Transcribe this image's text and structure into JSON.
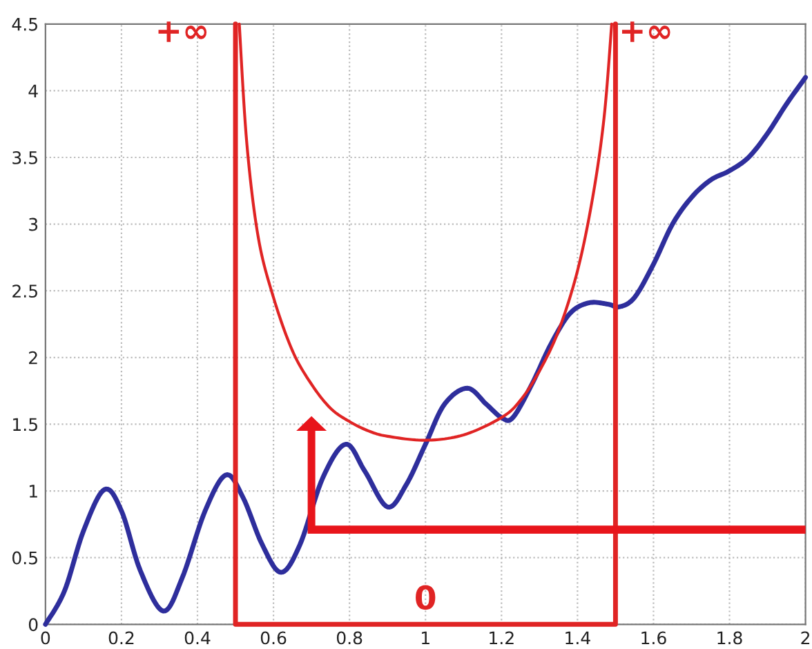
{
  "chart_data": {
    "type": "line",
    "xlim": [
      0,
      2
    ],
    "ylim": [
      0,
      4.5
    ],
    "xticks": [
      0,
      0.2,
      0.4,
      0.6,
      0.8,
      1,
      1.2,
      1.4,
      1.6,
      1.8,
      2
    ],
    "yticks": [
      0,
      0.5,
      1,
      1.5,
      2,
      2.5,
      3,
      3.5,
      4,
      4.5
    ],
    "grid": true,
    "line_style": "solid",
    "marker": "none",
    "series": [
      {
        "color": "#2e2e9c",
        "x": [
          0,
          0.05,
          0.1,
          0.155,
          0.2,
          0.25,
          0.31,
          0.36,
          0.42,
          0.475,
          0.52,
          0.57,
          0.62,
          0.67,
          0.73,
          0.79,
          0.84,
          0.9,
          0.95,
          1.0,
          1.05,
          1.11,
          1.16,
          1.2,
          1.23,
          1.28,
          1.33,
          1.38,
          1.43,
          1.48,
          1.51,
          1.55,
          1.6,
          1.65,
          1.7,
          1.75,
          1.8,
          1.85,
          1.9,
          1.95,
          2.0
        ],
        "values": [
          0,
          0.25,
          0.7,
          1.01,
          0.85,
          0.4,
          0.1,
          0.35,
          0.85,
          1.12,
          0.95,
          0.6,
          0.39,
          0.6,
          1.1,
          1.35,
          1.15,
          0.88,
          1.05,
          1.35,
          1.65,
          1.77,
          1.65,
          1.55,
          1.55,
          1.8,
          2.1,
          2.33,
          2.41,
          2.4,
          2.38,
          2.45,
          2.7,
          3.0,
          3.2,
          3.33,
          3.4,
          3.5,
          3.68,
          3.9,
          4.1
        ]
      },
      {
        "color": "#e02424",
        "x": [
          0.51,
          0.53,
          0.56,
          0.6,
          0.65,
          0.7,
          0.75,
          0.8,
          0.85,
          0.9,
          1.0,
          1.1,
          1.2,
          1.25,
          1.3,
          1.35,
          1.4,
          1.44,
          1.47,
          1.49
        ],
        "values": [
          4.5,
          3.6,
          2.9,
          2.45,
          2.05,
          1.8,
          1.62,
          1.52,
          1.45,
          1.41,
          1.38,
          1.42,
          1.55,
          1.68,
          1.9,
          2.2,
          2.65,
          3.2,
          3.8,
          4.5
        ]
      },
      {
        "color": "#e02424",
        "x": [
          0.5,
          0.5,
          1.5,
          1.5
        ],
        "values": [
          4.5,
          0,
          0,
          4.5
        ]
      }
    ],
    "annotations": [
      "+∞",
      "+∞",
      "0"
    ]
  }
}
